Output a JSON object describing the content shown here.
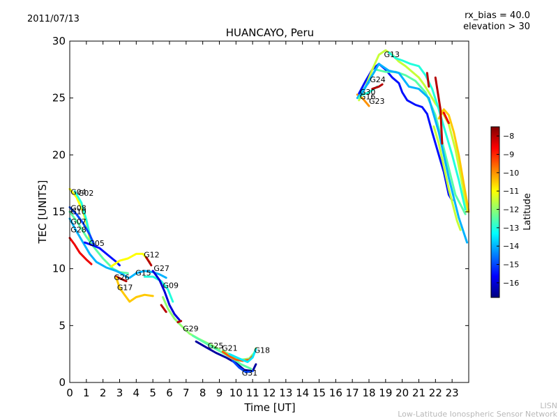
{
  "chart_data": {
    "type": "scatter",
    "title": "HUANCAYO, Peru",
    "date": "2011/07/13",
    "params": [
      "rx_bias = 40.0",
      "elevation > 30"
    ],
    "xlabel": "Time [UT]",
    "ylabel": "TEC [UNITS]",
    "xlim": [
      0,
      24
    ],
    "ylim": [
      0,
      30
    ],
    "xticks": [
      0,
      1,
      2,
      3,
      4,
      5,
      6,
      7,
      8,
      9,
      10,
      11,
      12,
      13,
      14,
      15,
      16,
      17,
      18,
      19,
      20,
      21,
      22,
      23
    ],
    "yticks": [
      0,
      5,
      10,
      15,
      20,
      25,
      30
    ],
    "colorbar": {
      "label": "Latitude",
      "range": [
        -16.8,
        -7.5
      ],
      "ticks": [
        -8,
        -9,
        -10,
        -11,
        -12,
        -13,
        -14,
        -15,
        -16
      ],
      "colors": [
        "#00007f",
        "#0000ff",
        "#007fff",
        "#00ffff",
        "#7fff7f",
        "#ffff00",
        "#ff7f00",
        "#ff0000",
        "#7f0000"
      ]
    },
    "satellites": [
      {
        "prn": "G04",
        "label_at": [
          0.05,
          16.5
        ],
        "lat": -11,
        "points": [
          [
            0,
            17.0
          ],
          [
            0.4,
            16.3
          ],
          [
            0.8,
            15.0
          ],
          [
            1.1,
            13.5
          ],
          [
            1.2,
            12.6
          ]
        ]
      },
      {
        "prn": "G02",
        "label_at": [
          0.5,
          16.4
        ],
        "lat": -13,
        "points": [
          [
            0.3,
            16.8
          ],
          [
            0.7,
            15.8
          ],
          [
            1.0,
            14.3
          ],
          [
            1.2,
            13.0
          ],
          [
            1.3,
            12.4
          ]
        ]
      },
      {
        "prn": "G08",
        "label_at": [
          0.05,
          15.1
        ],
        "lat": -15,
        "points": [
          [
            0,
            15.4
          ],
          [
            0.4,
            14.8
          ],
          [
            0.8,
            14.0
          ],
          [
            1.2,
            13.0
          ],
          [
            1.5,
            12.0
          ]
        ]
      },
      {
        "prn": "G10",
        "label_at": [
          0.05,
          14.8
        ],
        "lat": -12.5,
        "points": [
          [
            0,
            15.0
          ],
          [
            0.5,
            14.0
          ],
          [
            1.0,
            12.8
          ],
          [
            1.5,
            11.8
          ],
          [
            2.0,
            10.9
          ],
          [
            2.6,
            10.0
          ],
          [
            3.0,
            9.7
          ],
          [
            3.5,
            9.6
          ]
        ]
      },
      {
        "prn": "G07",
        "label_at": [
          0.05,
          13.9
        ],
        "lat": -14,
        "points": [
          [
            0,
            14.4
          ],
          [
            0.4,
            13.3
          ],
          [
            0.8,
            12.3
          ],
          [
            1.2,
            11.3
          ],
          [
            1.6,
            10.6
          ],
          [
            2.2,
            10.1
          ],
          [
            2.8,
            9.8
          ],
          [
            3.2,
            9.5
          ],
          [
            3.5,
            9.2
          ]
        ]
      },
      {
        "prn": "G28",
        "label_at": [
          0.05,
          13.2
        ],
        "lat": -8.5,
        "points": [
          [
            0,
            12.7
          ],
          [
            0.3,
            12.1
          ],
          [
            0.6,
            11.4
          ],
          [
            1.0,
            10.8
          ],
          [
            1.3,
            10.4
          ]
        ]
      },
      {
        "prn": "G05",
        "label_at": [
          1.15,
          12.0
        ],
        "lat": -15.5,
        "points": [
          [
            0.9,
            12.3
          ],
          [
            1.3,
            12.1
          ],
          [
            1.8,
            11.8
          ],
          [
            2.3,
            11.2
          ],
          [
            2.8,
            10.6
          ],
          [
            3.0,
            10.3
          ]
        ]
      },
      {
        "prn": "G12",
        "label_at": [
          4.45,
          11.0
        ],
        "lat": -11,
        "points": [
          [
            2.5,
            10.2
          ],
          [
            3.0,
            10.7
          ],
          [
            3.5,
            10.9
          ],
          [
            4.0,
            11.3
          ],
          [
            4.4,
            11.3
          ],
          [
            4.8,
            10.6
          ]
        ]
      },
      {
        "prn": "G26",
        "label_at": [
          2.65,
          9.0
        ],
        "lat": -8,
        "points": [
          [
            2.8,
            9.3
          ],
          [
            3.1,
            9.1
          ],
          [
            3.4,
            8.9
          ]
        ]
      },
      {
        "prn": "G15",
        "label_at": [
          3.95,
          9.4
        ],
        "lat": -14,
        "points": [
          [
            3.6,
            9.2
          ],
          [
            4.0,
            9.6
          ],
          [
            4.5,
            9.8
          ],
          [
            5.0,
            9.7
          ],
          [
            5.4,
            9.5
          ],
          [
            5.8,
            9.2
          ]
        ]
      },
      {
        "prn": "G27",
        "label_at": [
          5.05,
          9.8
        ],
        "lat": -13,
        "points": [
          [
            4.5,
            9.3
          ],
          [
            5.0,
            9.3
          ],
          [
            5.5,
            8.9
          ],
          [
            5.9,
            8.2
          ],
          [
            6.2,
            7.1
          ]
        ]
      },
      {
        "prn": "G17",
        "label_at": [
          2.85,
          8.1
        ],
        "lat": -10.5,
        "points": [
          [
            2.8,
            9.2
          ],
          [
            3.0,
            8.3
          ],
          [
            3.3,
            7.7
          ],
          [
            3.6,
            7.1
          ],
          [
            4.0,
            7.5
          ],
          [
            4.5,
            7.7
          ],
          [
            5.0,
            7.6
          ]
        ]
      },
      {
        "prn": "G09",
        "label_at": [
          5.6,
          8.3
        ],
        "lat": -16,
        "points": [
          [
            5.0,
            9.8
          ],
          [
            5.4,
            9.0
          ],
          [
            5.7,
            8.0
          ],
          [
            6.0,
            6.8
          ],
          [
            6.3,
            6.0
          ],
          [
            6.6,
            5.5
          ]
        ]
      },
      {
        "prn": "G29",
        "label_at": [
          6.8,
          4.5
        ],
        "lat": -12,
        "points": [
          [
            5.6,
            7.5
          ],
          [
            5.9,
            6.5
          ],
          [
            6.3,
            5.6
          ],
          [
            6.7,
            5.0
          ],
          [
            7.2,
            4.3
          ],
          [
            7.8,
            3.8
          ],
          [
            8.5,
            3.3
          ],
          [
            9.0,
            2.9
          ]
        ]
      },
      {
        "prn": "G25",
        "label_at": [
          8.3,
          3.0
        ],
        "lat": -12.5,
        "points": [
          [
            7.4,
            4.1
          ],
          [
            8.0,
            3.6
          ],
          [
            8.6,
            3.1
          ],
          [
            9.2,
            2.6
          ],
          [
            9.8,
            2.1
          ],
          [
            10.3,
            1.6
          ],
          [
            10.9,
            1.2
          ]
        ]
      },
      {
        "prn": "G21",
        "label_at": [
          9.15,
          2.8
        ],
        "lat": -16.5,
        "points": [
          [
            7.6,
            3.6
          ],
          [
            8.2,
            3.1
          ],
          [
            8.8,
            2.6
          ],
          [
            9.4,
            2.2
          ],
          [
            10.0,
            1.7
          ],
          [
            10.5,
            1.1
          ],
          [
            11.0,
            1.0
          ],
          [
            11.2,
            1.6
          ]
        ]
      },
      {
        "prn": "G18",
        "label_at": [
          11.1,
          2.6
        ],
        "lat": -12,
        "points": [
          [
            9.2,
            2.8
          ],
          [
            9.8,
            2.3
          ],
          [
            10.3,
            2.0
          ],
          [
            10.8,
            2.1
          ],
          [
            11.1,
            2.6
          ],
          [
            11.2,
            3.0
          ]
        ]
      },
      {
        "prn": "G31",
        "label_at": [
          10.35,
          0.6
        ],
        "lat": -15,
        "points": [
          [
            9.8,
            1.9
          ],
          [
            10.2,
            1.3
          ],
          [
            10.6,
            0.9
          ],
          [
            11.0,
            1.0
          ]
        ]
      },
      {
        "prn": "G30",
        "label_at": [
          17.45,
          25.3
        ],
        "lat": -10,
        "points": [
          [
            17.3,
            25.3
          ],
          [
            17.6,
            25.0
          ],
          [
            18.0,
            24.3
          ]
        ]
      },
      {
        "prn": "G16",
        "label_at": [
          17.45,
          24.9
        ],
        "lat": -14,
        "points": [
          [
            17.3,
            25.0
          ],
          [
            17.7,
            25.8
          ],
          [
            18.0,
            26.4
          ]
        ]
      },
      {
        "prn": "G23",
        "label_at": [
          18.0,
          24.5
        ],
        "lat": -13,
        "points": [
          [
            17.5,
            25.2
          ],
          [
            18.0,
            25.5
          ],
          [
            18.5,
            26.0
          ]
        ]
      },
      {
        "prn": "G24",
        "label_at": [
          18.05,
          26.4
        ],
        "lat": -15.5,
        "points": [
          [
            17.4,
            25.4
          ],
          [
            17.8,
            26.5
          ],
          [
            18.2,
            27.5
          ],
          [
            18.6,
            28.0
          ],
          [
            19.0,
            27.5
          ],
          [
            19.4,
            26.8
          ],
          [
            19.8,
            26.3
          ],
          [
            20.0,
            25.5
          ],
          [
            20.3,
            24.8
          ],
          [
            20.8,
            24.4
          ],
          [
            21.2,
            24.2
          ],
          [
            21.5,
            23.6
          ],
          [
            21.8,
            22.0
          ],
          [
            22.2,
            20.0
          ],
          [
            22.5,
            18.5
          ],
          [
            22.8,
            16.5
          ],
          [
            23.0,
            16.0
          ]
        ]
      },
      {
        "prn": "G13",
        "label_at": [
          18.9,
          28.6
        ],
        "lat": -11.5,
        "points": [
          [
            17.4,
            24.8
          ],
          [
            17.8,
            26.0
          ],
          [
            18.2,
            27.5
          ],
          [
            18.6,
            28.8
          ],
          [
            19.0,
            29.2
          ],
          [
            19.4,
            28.8
          ],
          [
            19.8,
            28.2
          ],
          [
            20.2,
            27.8
          ],
          [
            20.6,
            27.3
          ],
          [
            21.0,
            26.8
          ],
          [
            21.3,
            26.2
          ],
          [
            21.6,
            25.5
          ],
          [
            22.0,
            24.5
          ],
          [
            22.4,
            23.8
          ],
          [
            22.8,
            22.7
          ],
          [
            23.2,
            20.5
          ],
          [
            23.6,
            17.5
          ],
          [
            23.9,
            15.0
          ]
        ]
      },
      {
        "prn": "",
        "label_at": null,
        "lat": -12.5,
        "points": [
          [
            17.4,
            25.0
          ],
          [
            17.8,
            26.0
          ],
          [
            18.4,
            27.5
          ],
          [
            19.0,
            27.3
          ],
          [
            19.6,
            27.3
          ],
          [
            20.2,
            27.0
          ],
          [
            20.8,
            26.5
          ],
          [
            21.4,
            25.5
          ],
          [
            22.0,
            23.5
          ],
          [
            22.6,
            20.0
          ],
          [
            23.2,
            16.5
          ],
          [
            23.8,
            14.8
          ]
        ]
      },
      {
        "prn": "",
        "label_at": null,
        "lat": -14,
        "points": [
          [
            17.5,
            25.2
          ],
          [
            18.0,
            26.5
          ],
          [
            18.6,
            28.0
          ],
          [
            19.2,
            27.4
          ],
          [
            19.8,
            27.2
          ],
          [
            20.4,
            26.0
          ],
          [
            21.0,
            25.8
          ],
          [
            21.6,
            25.0
          ],
          [
            22.2,
            22.0
          ],
          [
            22.8,
            18.0
          ],
          [
            23.4,
            14.5
          ],
          [
            23.9,
            12.3
          ]
        ]
      },
      {
        "prn": "",
        "label_at": null,
        "lat": -13,
        "points": [
          [
            19.2,
            29.0
          ],
          [
            19.6,
            28.5
          ],
          [
            20.0,
            28.3
          ],
          [
            20.5,
            28.0
          ],
          [
            21.0,
            27.8
          ],
          [
            21.4,
            27.0
          ],
          [
            21.8,
            25.8
          ],
          [
            22.2,
            24.0
          ],
          [
            22.6,
            22.0
          ],
          [
            23.0,
            20.0
          ],
          [
            23.4,
            17.8
          ],
          [
            23.8,
            15.2
          ]
        ]
      },
      {
        "prn": "",
        "label_at": null,
        "lat": -10.5,
        "points": [
          [
            22.2,
            23.2
          ],
          [
            22.5,
            24.0
          ],
          [
            22.8,
            23.5
          ],
          [
            23.1,
            22.0
          ],
          [
            23.4,
            20.0
          ],
          [
            23.7,
            17.5
          ],
          [
            24.0,
            15.0
          ]
        ]
      },
      {
        "prn": "",
        "label_at": null,
        "lat": -11.5,
        "points": [
          [
            21.9,
            22.5
          ],
          [
            22.2,
            21.0
          ],
          [
            22.5,
            19.0
          ],
          [
            22.8,
            17.0
          ],
          [
            23.1,
            15.3
          ],
          [
            23.3,
            14.2
          ],
          [
            23.5,
            13.4
          ]
        ]
      },
      {
        "prn": "",
        "label_at": null,
        "lat": -8,
        "points": [
          [
            18.2,
            25.8
          ],
          [
            18.6,
            26.0
          ],
          [
            18.8,
            26.2
          ]
        ]
      },
      {
        "prn": "",
        "label_at": null,
        "lat": -8,
        "points": [
          [
            21.5,
            27.2
          ],
          [
            21.6,
            26.0
          ]
        ]
      },
      {
        "prn": "",
        "label_at": null,
        "lat": -8,
        "points": [
          [
            22.0,
            26.8
          ],
          [
            22.3,
            24.0
          ],
          [
            22.4,
            21.0
          ]
        ]
      },
      {
        "prn": "",
        "label_at": null,
        "lat": -8.5,
        "points": [
          [
            22.5,
            23.7
          ],
          [
            22.8,
            22.8
          ]
        ]
      },
      {
        "prn": "",
        "label_at": null,
        "lat": -8,
        "points": [
          [
            5.5,
            6.8
          ],
          [
            5.8,
            6.2
          ]
        ]
      },
      {
        "prn": "",
        "label_at": null,
        "lat": -8,
        "points": [
          [
            6.5,
            5.3
          ],
          [
            6.7,
            5.4
          ]
        ]
      },
      {
        "prn": "",
        "label_at": null,
        "lat": -8,
        "points": [
          [
            4.6,
            11.0
          ],
          [
            4.9,
            10.3
          ]
        ]
      },
      {
        "prn": "",
        "label_at": null,
        "lat": -9.5,
        "points": [
          [
            9.2,
            2.7
          ],
          [
            9.6,
            2.3
          ],
          [
            10.0,
            2.0
          ],
          [
            10.4,
            1.9
          ],
          [
            10.8,
            2.0
          ],
          [
            11.0,
            2.3
          ]
        ]
      },
      {
        "prn": "",
        "label_at": null,
        "lat": -13.5,
        "points": [
          [
            9.6,
            2.5
          ],
          [
            10.2,
            2.1
          ],
          [
            10.7,
            1.8
          ],
          [
            11.0,
            2.2
          ],
          [
            11.2,
            2.9
          ]
        ]
      }
    ]
  },
  "footer": {
    "line1": "LISN",
    "line2": "Low-Latitude Ionospheric Sensor Network"
  }
}
